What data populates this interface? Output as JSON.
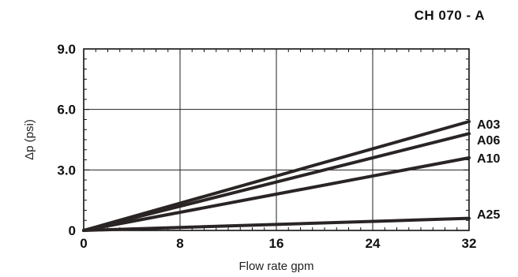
{
  "chart_data": {
    "type": "line",
    "title": "CH 070 - A",
    "xlabel": "Flow rate gpm",
    "ylabel": "Δp (psi)",
    "xlim": [
      0,
      32
    ],
    "ylim": [
      0,
      9
    ],
    "x_ticks": [
      0,
      8,
      16,
      24,
      32
    ],
    "x_tick_labels": [
      "0",
      "8",
      "16",
      "24",
      "32"
    ],
    "y_ticks": [
      0,
      3,
      6,
      9
    ],
    "y_tick_labels": [
      "0",
      "3.0",
      "6.0",
      "9.0"
    ],
    "grid": true,
    "series": [
      {
        "name": "A03",
        "x": [
          0,
          32
        ],
        "y": [
          0,
          5.4
        ]
      },
      {
        "name": "A06",
        "x": [
          0,
          32
        ],
        "y": [
          0,
          4.8
        ]
      },
      {
        "name": "A10",
        "x": [
          0,
          32
        ],
        "y": [
          0,
          3.6
        ]
      },
      {
        "name": "A25",
        "x": [
          0,
          32
        ],
        "y": [
          0,
          0.6
        ]
      }
    ],
    "colors": {
      "line": "#2a2424",
      "grid": "#222222"
    }
  }
}
